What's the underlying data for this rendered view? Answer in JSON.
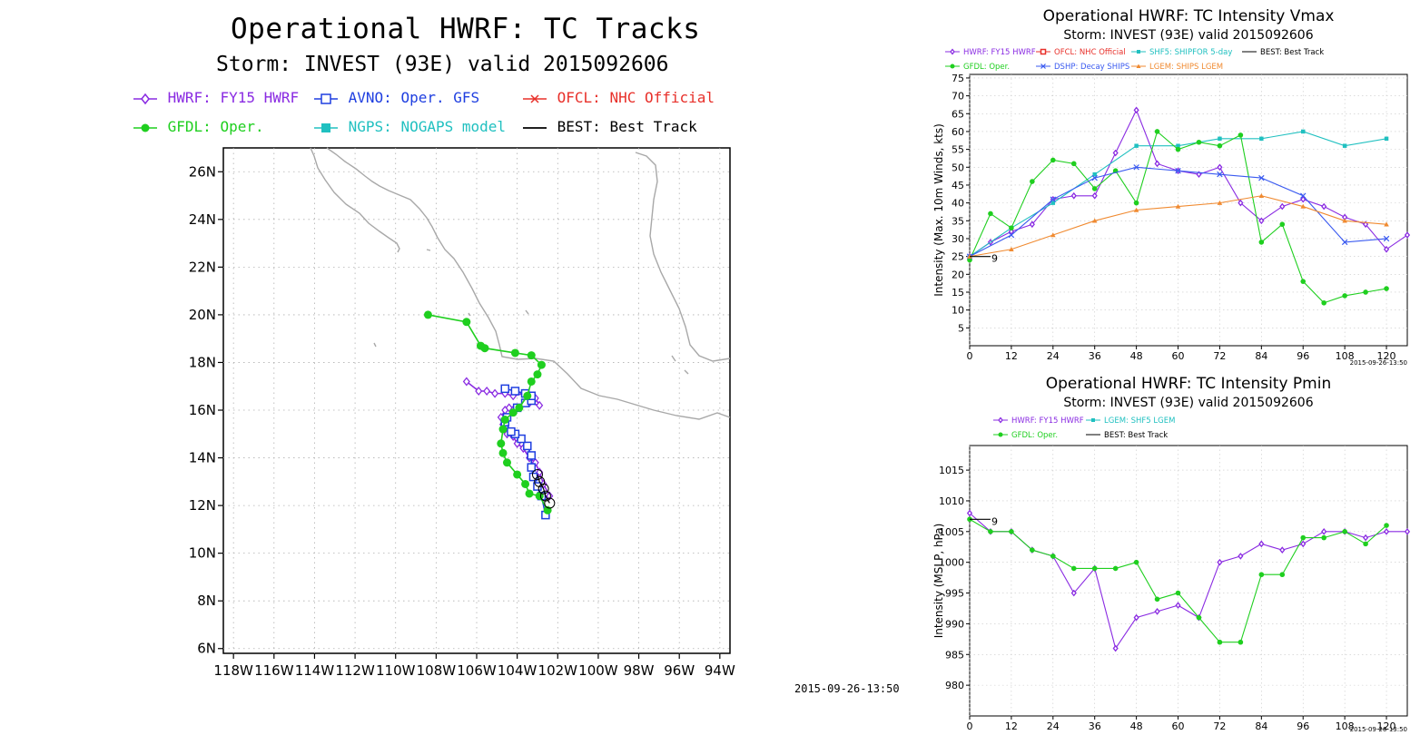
{
  "track_panel": {
    "title": "Operational HWRF: TC Tracks",
    "subtitle": "Storm: INVEST (93E) valid 2015092606",
    "legend": [
      {
        "label": "HWRF: FY15 HWRF",
        "color": "#8a2be2",
        "marker": "diamond"
      },
      {
        "label": "AVNO: Oper. GFS",
        "color": "#1f3fe0",
        "marker": "square"
      },
      {
        "label": "OFCL: NHC Official",
        "color": "#e8302a",
        "marker": "x"
      },
      {
        "label": "GFDL: Oper.",
        "color": "#1fcf1f",
        "marker": "dot"
      },
      {
        "label": "NGPS: NOGAPS model",
        "color": "#20c0c0",
        "marker": "filled-square"
      },
      {
        "label": "BEST: Best Track",
        "color": "#000000",
        "marker": "none"
      }
    ],
    "lat_ticks": [
      "26N",
      "24N",
      "22N",
      "20N",
      "18N",
      "16N",
      "14N",
      "12N",
      "10N",
      "8N",
      "6N"
    ],
    "lon_ticks": [
      "118W",
      "116W",
      "114W",
      "112W",
      "110W",
      "108W",
      "106W",
      "104W",
      "102W",
      "100W",
      "98W",
      "96W",
      "94W"
    ],
    "timestamp": "2015-09-26-13:50"
  },
  "chart_data": [
    {
      "type": "map-track",
      "title": "Operational HWRF: TC Tracks",
      "xlim": [
        -118.5,
        -93.5
      ],
      "ylim": [
        5.8,
        27.0
      ],
      "series": [
        {
          "name": "HWRF: FY15 HWRF",
          "lon": [
            -102.4,
            -102.7,
            -102.9,
            -103.1,
            -103.4,
            -103.7,
            -104.0,
            -104.2,
            -104.5,
            -104.7,
            -104.8,
            -104.6,
            -104.4,
            -103.4,
            -102.9,
            -103.1,
            -103.7,
            -104.2,
            -104.6,
            -105.1,
            -105.5,
            -105.9,
            -106.5
          ],
          "lat": [
            12.4,
            12.9,
            13.4,
            13.8,
            14.0,
            14.4,
            14.6,
            14.9,
            15.0,
            15.4,
            15.7,
            16.0,
            16.1,
            16.3,
            16.2,
            16.5,
            16.7,
            16.6,
            16.7,
            16.7,
            16.8,
            16.8,
            17.2
          ]
        },
        {
          "name": "AVNO: Oper. GFS",
          "lon": [
            -102.6,
            -102.8,
            -103.0,
            -103.2,
            -103.3,
            -103.3,
            -103.5,
            -103.8,
            -104.1,
            -104.3,
            -104.6,
            -104.5,
            -104.0,
            -103.6,
            -103.3,
            -103.3,
            -103.6,
            -104.1,
            -104.6
          ],
          "lat": [
            11.6,
            12.4,
            12.8,
            13.2,
            13.6,
            14.1,
            14.5,
            14.8,
            15.0,
            15.1,
            15.5,
            15.7,
            16.1,
            16.3,
            16.4,
            16.6,
            16.7,
            16.8,
            16.9
          ]
        },
        {
          "name": "GFDL: Oper.",
          "lon": [
            -102.5,
            -102.9,
            -103.4,
            -103.6,
            -104.0,
            -104.5,
            -104.7,
            -104.8,
            -104.7,
            -104.6,
            -104.2,
            -103.9,
            -103.5,
            -103.3,
            -103.0,
            -102.8,
            -103.3,
            -104.1,
            -105.6,
            -105.8,
            -106.5,
            -108.4
          ],
          "lat": [
            11.8,
            12.4,
            12.5,
            12.9,
            13.3,
            13.8,
            14.2,
            14.6,
            15.2,
            15.6,
            15.9,
            16.1,
            16.6,
            17.2,
            17.5,
            17.9,
            18.3,
            18.4,
            18.6,
            18.7,
            19.7,
            20.0
          ]
        },
        {
          "name": "BEST: Best Track",
          "lon": [
            -102.4,
            -102.6,
            -102.7,
            -102.9,
            -103.0
          ],
          "lat": [
            12.1,
            12.4,
            12.7,
            13.0,
            13.3
          ]
        }
      ]
    },
    {
      "type": "line",
      "title": "Operational HWRF: TC Intensity Vmax",
      "subtitle": "Storm: INVEST (93E) valid 2015092606",
      "ylabel": "Intensity (Max. 10m Winds, kts)",
      "xlim": [
        0,
        126
      ],
      "ylim": [
        0,
        76
      ],
      "xticks": [
        0,
        12,
        24,
        36,
        48,
        60,
        72,
        84,
        96,
        108,
        120
      ],
      "yticks": [
        5,
        10,
        15,
        20,
        25,
        30,
        35,
        40,
        45,
        50,
        55,
        60,
        65,
        70,
        75
      ],
      "legend": [
        {
          "label": "HWRF: FY15 HWRF",
          "color": "#8a2be2"
        },
        {
          "label": "OFCL: NHC Official",
          "color": "#e8302a"
        },
        {
          "label": "SHF5: SHIPFOR 5-day",
          "color": "#20c0c0"
        },
        {
          "label": "BEST: Best Track",
          "color": "#000000"
        },
        {
          "label": "GFDL: Oper.",
          "color": "#1fcf1f"
        },
        {
          "label": "DSHP: Decay SHIPS",
          "color": "#3a5af0"
        },
        {
          "label": "LGEM: SHIPS LGEM",
          "color": "#f08a30"
        }
      ],
      "series": [
        {
          "name": "HWRF: FY15 HWRF",
          "x": [
            0,
            6,
            12,
            18,
            24,
            30,
            36,
            42,
            48,
            54,
            60,
            66,
            72,
            78,
            84,
            90,
            96,
            102,
            108,
            114,
            120,
            126
          ],
          "y": [
            25,
            29,
            32,
            34,
            41,
            42,
            42,
            54,
            66,
            51,
            49,
            48,
            50,
            40,
            35,
            39,
            41,
            39,
            36,
            34,
            27,
            31
          ]
        },
        {
          "name": "SHF5: SHIPFOR 5-day",
          "x": [
            0,
            12,
            24,
            36,
            48,
            60,
            72,
            84,
            96,
            108,
            120
          ],
          "y": [
            25,
            33,
            40,
            48,
            56,
            56,
            58,
            58,
            60,
            56,
            58
          ]
        },
        {
          "name": "GFDL: Oper.",
          "x": [
            0,
            6,
            12,
            18,
            24,
            30,
            36,
            42,
            48,
            54,
            60,
            66,
            72,
            78,
            84,
            90,
            96,
            102,
            108,
            114,
            120
          ],
          "y": [
            24,
            37,
            33,
            46,
            52,
            51,
            44,
            49,
            40,
            60,
            55,
            57,
            56,
            59,
            29,
            34,
            18,
            12,
            14,
            15,
            16
          ]
        },
        {
          "name": "DSHP: Decay SHIPS",
          "x": [
            0,
            12,
            24,
            36,
            48,
            60,
            72,
            84,
            96,
            108,
            120
          ],
          "y": [
            25,
            31,
            41,
            47,
            50,
            49,
            48,
            47,
            42,
            29,
            30
          ]
        },
        {
          "name": "LGEM: SHIPS LGEM",
          "x": [
            0,
            12,
            24,
            36,
            48,
            60,
            72,
            84,
            96,
            108,
            120
          ],
          "y": [
            25,
            27,
            31,
            35,
            38,
            39,
            40,
            42,
            39,
            35,
            34
          ]
        },
        {
          "name": "BEST: Best Track",
          "x": [
            0,
            6
          ],
          "y": [
            25,
            25
          ]
        }
      ],
      "timestamp": "2015-09-26-13:50"
    },
    {
      "type": "line",
      "title": "Operational HWRF: TC Intensity Pmin",
      "subtitle": "Storm: INVEST (93E) valid 2015092606",
      "ylabel": "Intensity (MSLP, hPa)",
      "xlim": [
        0,
        126
      ],
      "ylim": [
        975,
        1019
      ],
      "xticks": [
        0,
        12,
        24,
        36,
        48,
        60,
        72,
        84,
        96,
        108,
        120
      ],
      "yticks": [
        980,
        985,
        990,
        995,
        1000,
        1005,
        1010,
        1015
      ],
      "legend": [
        {
          "label": "HWRF: FY15 HWRF",
          "color": "#8a2be2"
        },
        {
          "label": "LGEM: SHF5 LGEM",
          "color": "#20c0c0"
        },
        {
          "label": "GFDL: Oper.",
          "color": "#1fcf1f"
        },
        {
          "label": "BEST: Best Track",
          "color": "#000000"
        }
      ],
      "series": [
        {
          "name": "HWRF: FY15 HWRF",
          "x": [
            0,
            6,
            12,
            18,
            24,
            30,
            36,
            42,
            48,
            54,
            60,
            66,
            72,
            78,
            84,
            90,
            96,
            102,
            108,
            114,
            120,
            126
          ],
          "y": [
            1008,
            1005,
            1005,
            1002,
            1001,
            995,
            999,
            986,
            991,
            992,
            993,
            991,
            1000,
            1001,
            1003,
            1002,
            1003,
            1005,
            1005,
            1004,
            1005,
            1005
          ]
        },
        {
          "name": "GFDL: Oper.",
          "x": [
            0,
            6,
            12,
            18,
            24,
            30,
            36,
            42,
            48,
            54,
            60,
            66,
            72,
            78,
            84,
            90,
            96,
            102,
            108,
            114,
            120
          ],
          "y": [
            1007,
            1005,
            1005,
            1002,
            1001,
            999,
            999,
            999,
            1000,
            994,
            995,
            991,
            987,
            987,
            998,
            998,
            1004,
            1004,
            1005,
            1003,
            1006
          ]
        },
        {
          "name": "BEST: Best Track",
          "x": [
            0,
            6
          ],
          "y": [
            1007,
            1007
          ]
        }
      ],
      "timestamp": "2015-09-26-13:50"
    }
  ]
}
